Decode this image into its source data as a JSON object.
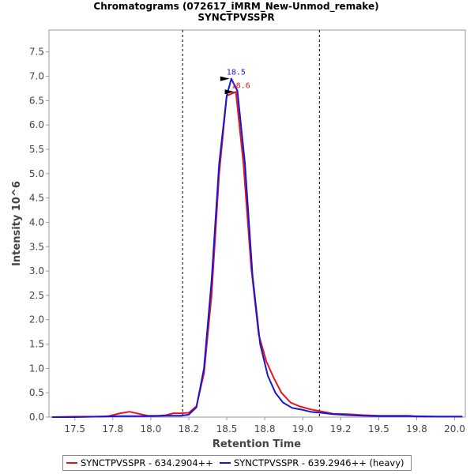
{
  "chart_data": {
    "type": "line",
    "title": "Chromatograms (072617_iMRM_New-Unmod_remake)",
    "subtitle": "SYNCTPVSSPR",
    "xlabel": "Retention Time",
    "ylabel": "Intensity 10^6",
    "xlim": [
      17.33,
      20.07
    ],
    "ylim": [
      0,
      7.95
    ],
    "x_ticks": [
      "17.5",
      "17.8",
      "18.0",
      "18.2",
      "18.5",
      "18.8",
      "19.0",
      "19.2",
      "19.5",
      "19.8",
      "20.0"
    ],
    "x_tick_values": [
      17.5,
      17.75,
      18.0,
      18.25,
      18.5,
      18.75,
      19.0,
      19.25,
      19.5,
      19.75,
      20.0
    ],
    "y_ticks": [
      "0.0",
      "0.5",
      "1.0",
      "1.5",
      "2.0",
      "2.5",
      "3.0",
      "3.5",
      "4.0",
      "4.5",
      "5.0",
      "5.5",
      "6.0",
      "6.5",
      "7.0",
      "7.5"
    ],
    "y_tick_values": [
      0,
      0.5,
      1.0,
      1.5,
      2.0,
      2.5,
      3.0,
      3.5,
      4.0,
      4.5,
      5.0,
      5.5,
      6.0,
      6.5,
      7.0,
      7.5
    ],
    "integration_bounds": [
      18.21,
      19.11
    ],
    "series": [
      {
        "name": "SYNCTPVSSPR - 634.2904++",
        "color": "#e8141c",
        "peak_label": "18.6",
        "peak": [
          18.56,
          6.68
        ],
        "points": [
          [
            17.35,
            0.0
          ],
          [
            17.5,
            0.01
          ],
          [
            17.65,
            0.01
          ],
          [
            17.72,
            0.02
          ],
          [
            17.8,
            0.08
          ],
          [
            17.86,
            0.11
          ],
          [
            17.92,
            0.07
          ],
          [
            17.98,
            0.03
          ],
          [
            18.05,
            0.03
          ],
          [
            18.1,
            0.04
          ],
          [
            18.15,
            0.08
          ],
          [
            18.2,
            0.08
          ],
          [
            18.25,
            0.09
          ],
          [
            18.3,
            0.22
          ],
          [
            18.35,
            0.9
          ],
          [
            18.4,
            2.5
          ],
          [
            18.45,
            5.0
          ],
          [
            18.5,
            6.6
          ],
          [
            18.56,
            6.68
          ],
          [
            18.61,
            5.2
          ],
          [
            18.66,
            3.1
          ],
          [
            18.71,
            1.7
          ],
          [
            18.76,
            1.15
          ],
          [
            18.81,
            0.8
          ],
          [
            18.86,
            0.5
          ],
          [
            18.92,
            0.3
          ],
          [
            18.98,
            0.22
          ],
          [
            19.05,
            0.16
          ],
          [
            19.12,
            0.12
          ],
          [
            19.2,
            0.07
          ],
          [
            19.3,
            0.06
          ],
          [
            19.4,
            0.04
          ],
          [
            19.5,
            0.03
          ],
          [
            19.7,
            0.03
          ],
          [
            19.75,
            0.01
          ],
          [
            19.9,
            0.01
          ],
          [
            20.05,
            0.01
          ]
        ]
      },
      {
        "name": "SYNCTPVSSPR - 639.2946++ (heavy)",
        "color": "#1616d6",
        "peak_label": "18.5",
        "peak": [
          18.53,
          6.95
        ],
        "points": [
          [
            17.35,
            0.0
          ],
          [
            17.5,
            0.0
          ],
          [
            17.65,
            0.01
          ],
          [
            17.8,
            0.02
          ],
          [
            17.9,
            0.02
          ],
          [
            18.0,
            0.02
          ],
          [
            18.1,
            0.03
          ],
          [
            18.2,
            0.03
          ],
          [
            18.25,
            0.05
          ],
          [
            18.3,
            0.2
          ],
          [
            18.35,
            1.0
          ],
          [
            18.4,
            2.8
          ],
          [
            18.45,
            5.2
          ],
          [
            18.5,
            6.6
          ],
          [
            18.53,
            6.95
          ],
          [
            18.57,
            6.7
          ],
          [
            18.62,
            5.2
          ],
          [
            18.67,
            2.9
          ],
          [
            18.72,
            1.5
          ],
          [
            18.77,
            0.85
          ],
          [
            18.82,
            0.5
          ],
          [
            18.87,
            0.3
          ],
          [
            18.93,
            0.19
          ],
          [
            19.0,
            0.15
          ],
          [
            19.05,
            0.11
          ],
          [
            19.12,
            0.09
          ],
          [
            19.2,
            0.06
          ],
          [
            19.3,
            0.04
          ],
          [
            19.4,
            0.03
          ],
          [
            19.5,
            0.02
          ],
          [
            19.7,
            0.02
          ],
          [
            19.9,
            0.01
          ],
          [
            20.05,
            0.01
          ]
        ]
      }
    ],
    "legend_position": "bottom"
  }
}
